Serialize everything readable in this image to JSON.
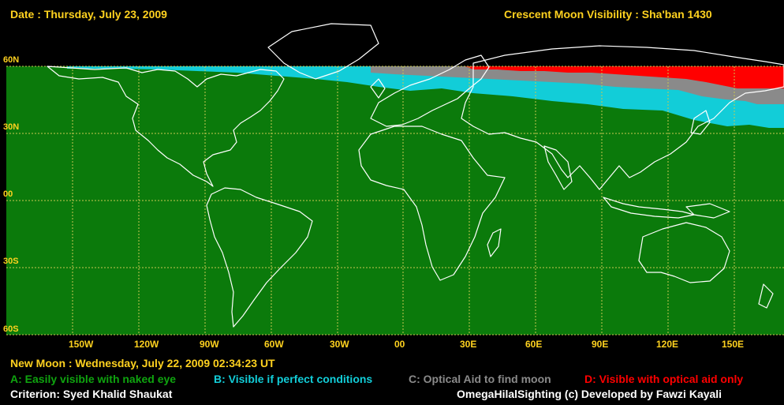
{
  "header": {
    "date": "Date : Thursday, July 23, 2009",
    "title": "Crescent Moon Visibility : Sha'ban  1430"
  },
  "map": {
    "lat_labels": [
      "60N",
      "30N",
      "00",
      "30S",
      "60S"
    ],
    "lon_labels": [
      "150W",
      "120W",
      "90W",
      "60W",
      "30W",
      "00",
      "30E",
      "60E",
      "90E",
      "120E",
      "150E"
    ],
    "colors": {
      "zone_a": "#0b7a0b",
      "zone_b": "#12cdd8",
      "zone_c": "#8a8a8a",
      "zone_d": "#ff0000",
      "grid": "#c8c850",
      "coast": "#ffffff",
      "label": "#ffd21f"
    }
  },
  "footer": {
    "new_moon": "New Moon : Wednesday, July 22, 2009  02:34:23  UT",
    "legend": {
      "a": "A: Easily visible with naked eye",
      "b": "B: Visible if perfect conditions",
      "c": "C: Optical Aid to find moon",
      "d": "D: Visible with optical aid only"
    },
    "criterion": "Criterion: Syed Khalid Shaukat",
    "credit": "OmegaHilalSighting  (c)  Developed by Fawzi Kayali"
  }
}
